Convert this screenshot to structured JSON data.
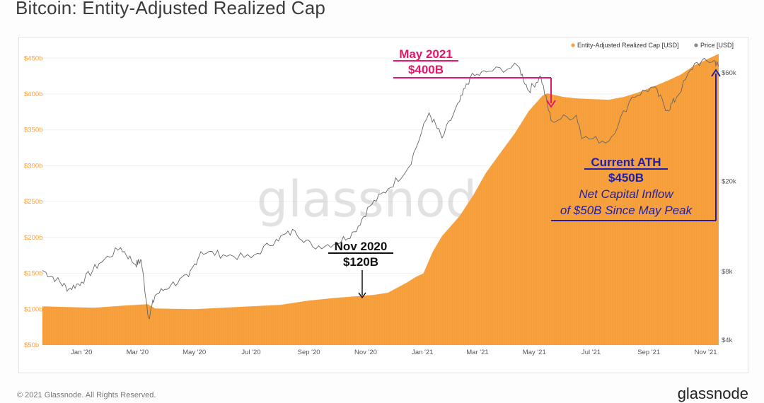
{
  "title": "Bitcoin: Entity-Adjusted Realized Cap",
  "footer_left": "© 2021 Glassnode. All Rights Reserved.",
  "footer_right": "glassnode",
  "watermark": "glassnode",
  "colors": {
    "realized_cap": "#f7a13e",
    "price": "#666666",
    "may_annotation": "#e5176b",
    "ath_annotation": "#1f1fa8",
    "nov_annotation": "#111111"
  },
  "chart_data": {
    "type": "area",
    "title": "Bitcoin: Entity-Adjusted Realized Cap",
    "x_tick_labels": [
      "Jan '20",
      "Mar '20",
      "May '20",
      "Jul '20",
      "Sep '20",
      "Nov '20",
      "Jan '21",
      "Mar '21",
      "May '21",
      "Jul '21",
      "Sep '21",
      "Nov '21"
    ],
    "y_left_tick_labels": [
      "$50b",
      "$100b",
      "$150b",
      "$200b",
      "$250b",
      "$300b",
      "$350b",
      "$400b",
      "$450b"
    ],
    "y_left_tick_values": [
      50,
      100,
      150,
      200,
      250,
      300,
      350,
      400,
      450
    ],
    "y_left_range": [
      50,
      470
    ],
    "y_right_tick_labels": [
      "$4k",
      "$8k",
      "$20k",
      "$60k"
    ],
    "y_right_tick_values": [
      4000,
      8000,
      20000,
      60000
    ],
    "y_right_scale": "log",
    "x_range": [
      "2019-11-20",
      "2021-11-15"
    ],
    "legend": {
      "position": "top-right",
      "entries": [
        "Entity-Adjusted Realized Cap [USD]",
        "Price [USD]"
      ]
    },
    "series": [
      {
        "name": "Entity-Adjusted Realized Cap [USD]",
        "unit": "billion USD",
        "points": [
          [
            "2019-11-20",
            104
          ],
          [
            "2019-12-15",
            103
          ],
          [
            "2020-01-15",
            102
          ],
          [
            "2020-02-15",
            105
          ],
          [
            "2020-03-12",
            107
          ],
          [
            "2020-03-20",
            101
          ],
          [
            "2020-05-01",
            100
          ],
          [
            "2020-06-01",
            102
          ],
          [
            "2020-07-01",
            104
          ],
          [
            "2020-08-01",
            106
          ],
          [
            "2020-09-01",
            112
          ],
          [
            "2020-10-01",
            116
          ],
          [
            "2020-11-01",
            119
          ],
          [
            "2020-11-10",
            120
          ],
          [
            "2020-11-25",
            123
          ],
          [
            "2020-12-15",
            137
          ],
          [
            "2020-12-25",
            145
          ],
          [
            "2021-01-02",
            150
          ],
          [
            "2021-01-12",
            180
          ],
          [
            "2021-01-22",
            202
          ],
          [
            "2021-02-10",
            230
          ],
          [
            "2021-02-25",
            260
          ],
          [
            "2021-03-10",
            290
          ],
          [
            "2021-03-25",
            317
          ],
          [
            "2021-04-10",
            345
          ],
          [
            "2021-04-25",
            376
          ],
          [
            "2021-05-10",
            398
          ],
          [
            "2021-05-15",
            401
          ],
          [
            "2021-06-01",
            396
          ],
          [
            "2021-06-15",
            394
          ],
          [
            "2021-07-01",
            393
          ],
          [
            "2021-07-20",
            392
          ],
          [
            "2021-08-05",
            396
          ],
          [
            "2021-08-20",
            402
          ],
          [
            "2021-09-05",
            410
          ],
          [
            "2021-09-20",
            418
          ],
          [
            "2021-10-05",
            427
          ],
          [
            "2021-10-20",
            440
          ],
          [
            "2021-11-05",
            450
          ],
          [
            "2021-11-15",
            456
          ]
        ]
      },
      {
        "name": "Price [USD]",
        "unit": "USD",
        "points": [
          [
            "2019-11-20",
            8100
          ],
          [
            "2019-12-05",
            7400
          ],
          [
            "2019-12-18",
            6700
          ],
          [
            "2020-01-01",
            7200
          ],
          [
            "2020-01-20",
            8700
          ],
          [
            "2020-02-12",
            10200
          ],
          [
            "2020-02-28",
            8600
          ],
          [
            "2020-03-05",
            9000
          ],
          [
            "2020-03-13",
            5000
          ],
          [
            "2020-03-20",
            6300
          ],
          [
            "2020-04-06",
            7000
          ],
          [
            "2020-04-25",
            7600
          ],
          [
            "2020-05-08",
            9800
          ],
          [
            "2020-06-01",
            9500
          ],
          [
            "2020-07-01",
            9200
          ],
          [
            "2020-07-28",
            11100
          ],
          [
            "2020-08-17",
            12100
          ],
          [
            "2020-09-05",
            10300
          ],
          [
            "2020-10-01",
            10700
          ],
          [
            "2020-10-20",
            12000
          ],
          [
            "2020-11-05",
            15500
          ],
          [
            "2020-11-25",
            18500
          ],
          [
            "2020-12-17",
            23000
          ],
          [
            "2021-01-08",
            40000
          ],
          [
            "2021-01-22",
            31000
          ],
          [
            "2021-02-10",
            45000
          ],
          [
            "2021-02-21",
            57000
          ],
          [
            "2021-03-13",
            61000
          ],
          [
            "2021-04-14",
            64000
          ],
          [
            "2021-04-25",
            50000
          ],
          [
            "2021-05-08",
            58000
          ],
          [
            "2021-05-19",
            37000
          ],
          [
            "2021-06-15",
            39000
          ],
          [
            "2021-06-22",
            31000
          ],
          [
            "2021-07-20",
            30000
          ],
          [
            "2021-08-14",
            47000
          ],
          [
            "2021-09-06",
            52000
          ],
          [
            "2021-09-21",
            41000
          ],
          [
            "2021-10-01",
            47000
          ],
          [
            "2021-10-20",
            66000
          ],
          [
            "2021-11-10",
            68000
          ],
          [
            "2021-11-15",
            64000
          ]
        ]
      }
    ],
    "annotations": [
      {
        "id": "may",
        "lines": [
          "May 2021",
          "$400B"
        ]
      },
      {
        "id": "nov",
        "lines": [
          "Nov 2020",
          "$120B"
        ]
      },
      {
        "id": "ath",
        "lines": [
          "Current ATH",
          "$450B"
        ],
        "sub_lines": [
          "Net Capital Inflow",
          "of $50B Since May Peak"
        ]
      }
    ]
  }
}
